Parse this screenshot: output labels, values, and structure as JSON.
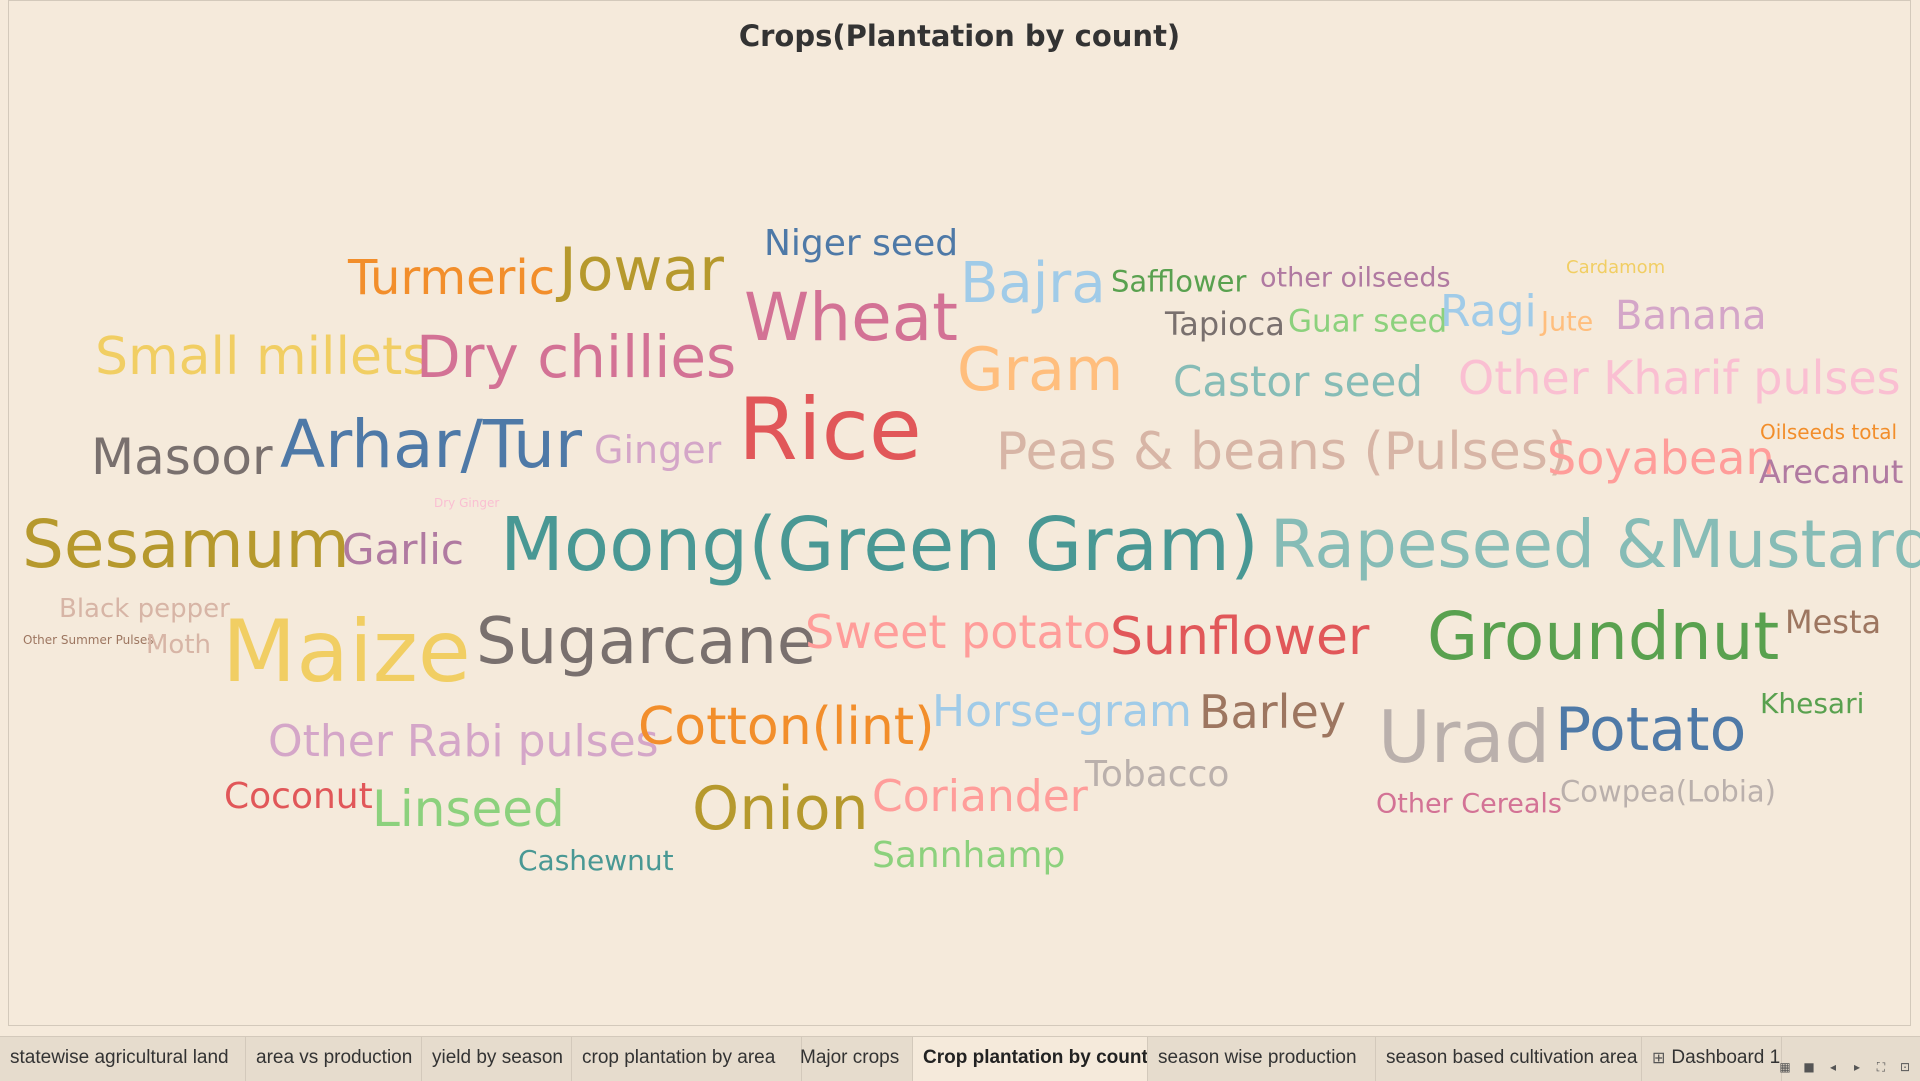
{
  "sheet_title": "Crops(Plantation by count)",
  "words": [
    {
      "text": "Niger seed",
      "color": "#4e79a7"
    },
    {
      "text": "Turmeric",
      "color": "#f28e2b"
    },
    {
      "text": "Jowar",
      "color": "#b6992d"
    },
    {
      "text": "Bajra",
      "color": "#a0cbe8"
    },
    {
      "text": "Safflower",
      "color": "#59a14f"
    },
    {
      "text": "other oilseeds",
      "color": "#b07aa1"
    },
    {
      "text": "Cardamom",
      "color": "#f1ce63"
    },
    {
      "text": "Wheat",
      "color": "#d37295"
    },
    {
      "text": "Tapioca",
      "color": "#79706e"
    },
    {
      "text": "Guar seed",
      "color": "#8cd17d"
    },
    {
      "text": "Ragi",
      "color": "#a0cbe8"
    },
    {
      "text": "Jute",
      "color": "#ffbe7d"
    },
    {
      "text": "Banana",
      "color": "#d4a6c8"
    },
    {
      "text": "Small millets",
      "color": "#f1ce63"
    },
    {
      "text": "Dry chillies",
      "color": "#d37295"
    },
    {
      "text": "Gram",
      "color": "#ffbe7d"
    },
    {
      "text": "Castor seed",
      "color": "#86bcb6"
    },
    {
      "text": "Other Kharif pulses",
      "color": "#fabfd2"
    },
    {
      "text": "Masoor",
      "color": "#79706e"
    },
    {
      "text": "Arhar/Tur",
      "color": "#4e79a7"
    },
    {
      "text": "Ginger",
      "color": "#d4a6c8"
    },
    {
      "text": "Rice",
      "color": "#e15759"
    },
    {
      "text": "Peas & beans (Pulses)",
      "color": "#d7b5a6"
    },
    {
      "text": "Soyabean",
      "color": "#ff9d9a"
    },
    {
      "text": "Oilseeds total",
      "color": "#f28e2b"
    },
    {
      "text": "Arecanut",
      "color": "#b07aa1"
    },
    {
      "text": "Dry Ginger",
      "color": "#fabfd2"
    },
    {
      "text": "Sesamum",
      "color": "#b6992d"
    },
    {
      "text": "Garlic",
      "color": "#b07aa1"
    },
    {
      "text": "Moong(Green Gram)",
      "color": "#499894"
    },
    {
      "text": "Rapeseed &Mustard",
      "color": "#86bcb6"
    },
    {
      "text": "Black pepper",
      "color": "#d7b5a6"
    },
    {
      "text": "Other Summer Pulses",
      "color": "#9d7660"
    },
    {
      "text": "Moth",
      "color": "#d7b5a6"
    },
    {
      "text": "Maize",
      "color": "#f1ce63"
    },
    {
      "text": "Sugarcane",
      "color": "#79706e"
    },
    {
      "text": "Sweet potato",
      "color": "#ff9d9a"
    },
    {
      "text": "Sunflower",
      "color": "#e15759"
    },
    {
      "text": "Groundnut",
      "color": "#59a14f"
    },
    {
      "text": "Mesta",
      "color": "#9d7660"
    },
    {
      "text": "Other Rabi pulses",
      "color": "#d4a6c8"
    },
    {
      "text": "Cotton(lint)",
      "color": "#f28e2b"
    },
    {
      "text": "Horse-gram",
      "color": "#a0cbe8"
    },
    {
      "text": "Barley",
      "color": "#9d7660"
    },
    {
      "text": "Urad",
      "color": "#bab0ac"
    },
    {
      "text": "Potato",
      "color": "#4e79a7"
    },
    {
      "text": "Khesari",
      "color": "#59a14f"
    },
    {
      "text": "Coconut",
      "color": "#e15759"
    },
    {
      "text": "Linseed",
      "color": "#8cd17d"
    },
    {
      "text": "Onion",
      "color": "#b6992d"
    },
    {
      "text": "Coriander",
      "color": "#ff9d9a"
    },
    {
      "text": "Tobacco",
      "color": "#bab0ac"
    },
    {
      "text": "Other Cereals",
      "color": "#d37295"
    },
    {
      "text": "Cowpea(Lobia)",
      "color": "#bab0ac"
    },
    {
      "text": "Cashewnut",
      "color": "#499894"
    },
    {
      "text": "Sannhamp",
      "color": "#8cd17d"
    }
  ],
  "tabs": [
    {
      "label": "statewise agricultural land"
    },
    {
      "label": "area vs production"
    },
    {
      "label": "yield by season"
    },
    {
      "label": "crop plantation by area"
    },
    {
      "label": "Major crops"
    },
    {
      "label": "Crop plantation by count"
    },
    {
      "label": "season wise production"
    },
    {
      "label": "season based cultivation area"
    },
    {
      "label": "Dashboard 1"
    }
  ],
  "active_tab": "Crop plantation by count",
  "controls": {
    "icons": [
      "show-filmstrip-icon",
      "show-tabs-icon",
      "previous-sheet-icon",
      "next-sheet-icon",
      "fullscreen-icon",
      "presentation-icon"
    ]
  }
}
